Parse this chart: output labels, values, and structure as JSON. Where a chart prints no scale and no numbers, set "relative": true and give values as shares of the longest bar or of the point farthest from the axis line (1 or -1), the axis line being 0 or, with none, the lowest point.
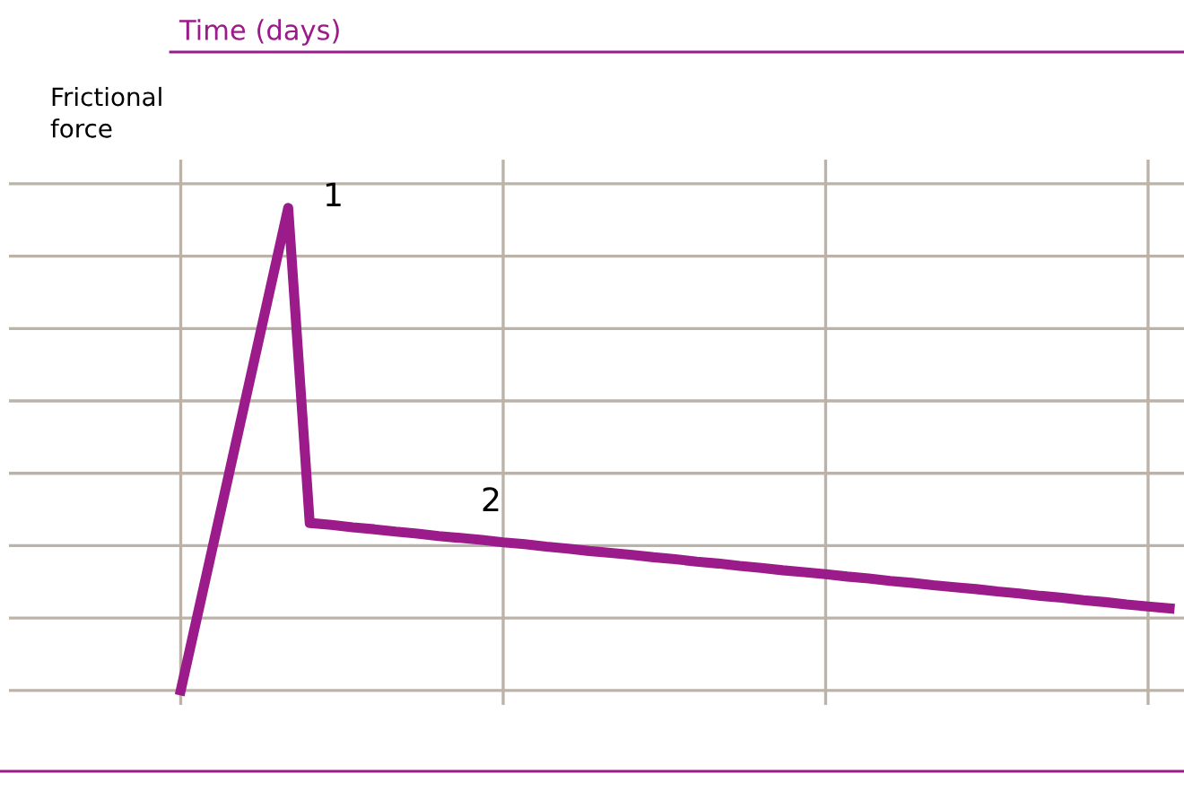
{
  "chart_data": {
    "type": "line",
    "title": "Time (days)",
    "ylabel": "Frictional\nforce",
    "relative": true,
    "categories": [
      null,
      null,
      null,
      null,
      null,
      null,
      null,
      null,
      null,
      null,
      null,
      null,
      null,
      null,
      null,
      null,
      null,
      null,
      null,
      null,
      null,
      null,
      null,
      null,
      null,
      null,
      null,
      null,
      null,
      null,
      null,
      null,
      null,
      null,
      null,
      null,
      null,
      null,
      null,
      null,
      null,
      null,
      null,
      null,
      null,
      null,
      null
    ],
    "series": [
      {
        "color": "#9b1b8a",
        "values": [
          0,
          0.2,
          0.4,
          0.6,
          0.8,
          1,
          0.347,
          0.343,
          0.338,
          0.334,
          0.329,
          0.325,
          0.32,
          0.316,
          0.312,
          0.307,
          0.303,
          0.298,
          0.294,
          0.289,
          0.285,
          0.281,
          0.276,
          0.272,
          0.267,
          0.263,
          0.258,
          0.254,
          0.249,
          0.245,
          0.241,
          0.236,
          0.232,
          0.227,
          0.223,
          0.218,
          0.214,
          0.21,
          0.205,
          0.201,
          0.196,
          0.192,
          0.187,
          0.183,
          0.178,
          0.174,
          0.17
        ]
      }
    ],
    "grid": true,
    "marker": "none",
    "line_style": "solid",
    "annotations": [
      "1",
      "2"
    ]
  }
}
